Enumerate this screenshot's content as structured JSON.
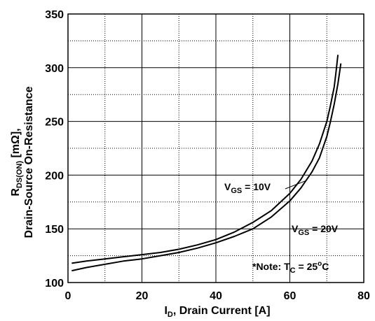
{
  "chart_data": {
    "type": "line",
    "xlabel": {
      "main": "I",
      "sub": "D",
      "rest": ", Drain Current [A]"
    },
    "ylabel": {
      "line1": {
        "main": "R",
        "sub": "DS(ON)",
        "rest": " [mΩ],"
      },
      "line2": "Drain-Source On-Resistance"
    },
    "xlim": [
      0,
      80
    ],
    "ylim": [
      100,
      350
    ],
    "xticks": [
      0,
      20,
      40,
      60,
      80
    ],
    "yticks": [
      100,
      150,
      200,
      250,
      300,
      350
    ],
    "grid": true,
    "series": [
      {
        "name": "VGS = 10V",
        "label": {
          "main": "V",
          "sub": "GS",
          "rest": " = 10V"
        },
        "x": [
          1,
          5,
          10,
          15,
          20,
          25,
          30,
          35,
          40,
          45,
          50,
          55,
          60,
          63,
          66,
          68,
          70,
          71,
          72,
          72.5,
          73
        ],
        "y": [
          118,
          120,
          122,
          124,
          126,
          128,
          131,
          135,
          140,
          147,
          156,
          167,
          183,
          196,
          213,
          229,
          250,
          265,
          282,
          296,
          312
        ]
      },
      {
        "name": "VGS = 20V",
        "label": {
          "main": "V",
          "sub": "GS",
          "rest": " = 20V"
        },
        "x": [
          1,
          5,
          10,
          15,
          20,
          25,
          30,
          35,
          40,
          45,
          50,
          55,
          60,
          63,
          66,
          68,
          70,
          71,
          72,
          73,
          73.8
        ],
        "y": [
          111,
          114,
          117,
          120,
          122,
          125,
          128,
          132,
          137,
          143,
          150,
          161,
          176,
          188,
          203,
          216,
          236,
          250,
          266,
          285,
          304
        ]
      }
    ],
    "note": {
      "pre": "*Note: T",
      "sub": "C",
      "mid": " = 25",
      "sup": "o",
      "post": "C"
    }
  }
}
